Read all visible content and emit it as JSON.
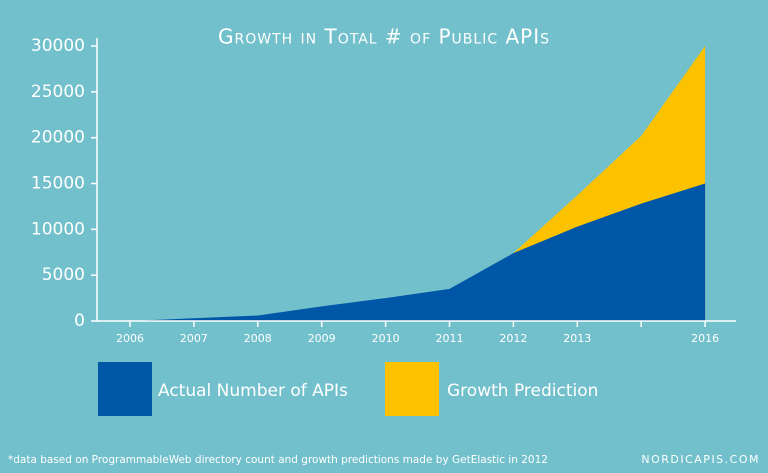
{
  "chart_data": {
    "type": "area",
    "title": "Growth in Total # of Public APIs",
    "categories": [
      "2006",
      "2007",
      "2008",
      "2009",
      "2010",
      "2011",
      "2012",
      "2013",
      null,
      "2016"
    ],
    "series": [
      {
        "name": "Growth Prediction",
        "color": "#fcc200",
        "values": [
          null,
          null,
          null,
          null,
          null,
          null,
          7400,
          13700,
          20200,
          30000
        ]
      },
      {
        "name": "Actual Number of APIs",
        "color": "#0057a8",
        "values": [
          0,
          300,
          600,
          1600,
          2500,
          3500,
          7400,
          10300,
          12800,
          15000
        ]
      }
    ],
    "ylim": [
      0,
      30000
    ],
    "yticks": [
      0,
      5000,
      10000,
      15000,
      20000,
      25000,
      30000
    ],
    "footnote": "*data based on ProgrammableWeb directory count and growth predictions made by GetElastic in 2012",
    "source": "NORDICAPIS.COM"
  }
}
